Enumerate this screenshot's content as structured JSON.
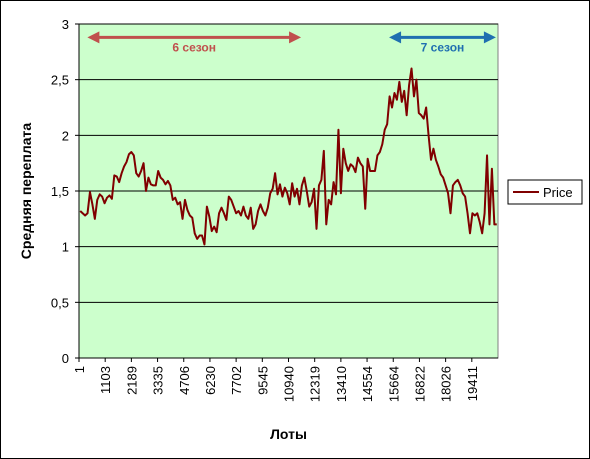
{
  "chart_data": {
    "type": "line",
    "ylabel": "Средняя переплата",
    "xlabel": "Лоты",
    "ylim": [
      0,
      3
    ],
    "y_ticks": [
      "0",
      "0,5",
      "1",
      "1,5",
      "2",
      "2,5",
      "3"
    ],
    "x_tick_labels": [
      "1",
      "1103",
      "2189",
      "3335",
      "4706",
      "6230",
      "7702",
      "9545",
      "10940",
      "12319",
      "13410",
      "14554",
      "15664",
      "16822",
      "18026",
      "19411"
    ],
    "grid": true,
    "legend_position": "right",
    "plot_background": "#ccffcc",
    "series": [
      {
        "name": "Price",
        "color": "#800000",
        "values": [
          1.32,
          1.3,
          1.28,
          1.3,
          1.49,
          1.38,
          1.25,
          1.42,
          1.47,
          1.45,
          1.39,
          1.44,
          1.46,
          1.43,
          1.64,
          1.63,
          1.58,
          1.66,
          1.72,
          1.76,
          1.83,
          1.85,
          1.82,
          1.66,
          1.63,
          1.68,
          1.75,
          1.5,
          1.62,
          1.56,
          1.55,
          1.55,
          1.68,
          1.62,
          1.6,
          1.56,
          1.59,
          1.55,
          1.42,
          1.44,
          1.38,
          1.4,
          1.25,
          1.42,
          1.33,
          1.28,
          1.26,
          1.12,
          1.07,
          1.1,
          1.1,
          1.02,
          1.36,
          1.27,
          1.14,
          1.18,
          1.13,
          1.3,
          1.35,
          1.3,
          1.24,
          1.45,
          1.42,
          1.36,
          1.3,
          1.32,
          1.28,
          1.36,
          1.28,
          1.25,
          1.35,
          1.16,
          1.2,
          1.32,
          1.38,
          1.32,
          1.28,
          1.35,
          1.48,
          1.52,
          1.66,
          1.47,
          1.56,
          1.45,
          1.53,
          1.48,
          1.38,
          1.57,
          1.45,
          1.52,
          1.38,
          1.55,
          1.62,
          1.5,
          1.36,
          1.4,
          1.52,
          1.16,
          1.55,
          1.6,
          1.86,
          1.2,
          1.42,
          1.38,
          1.58,
          1.47,
          2.05,
          1.48,
          1.88,
          1.75,
          1.68,
          1.74,
          1.72,
          1.67,
          1.8,
          1.75,
          1.72,
          1.34,
          1.79,
          1.68,
          1.68,
          1.68,
          1.82,
          1.85,
          1.92,
          2.05,
          2.1,
          2.35,
          2.25,
          2.38,
          2.32,
          2.48,
          2.3,
          2.4,
          2.18,
          2.45,
          2.6,
          2.35,
          2.5,
          2.2,
          2.18,
          2.15,
          2.25,
          2.0,
          1.78,
          1.88,
          1.78,
          1.72,
          1.65,
          1.62,
          1.55,
          1.48,
          1.3,
          1.55,
          1.58,
          1.6,
          1.55,
          1.48,
          1.45,
          1.3,
          1.12,
          1.3,
          1.28,
          1.3,
          1.22,
          1.12,
          1.3,
          1.82,
          1.2,
          1.7,
          1.2,
          1.2
        ]
      }
    ],
    "annotations": [
      {
        "label": "6 сезон",
        "color": "#c0504d",
        "x_start": 0.02,
        "x_end": 0.53,
        "y": 2.88,
        "label_y": 2.8
      },
      {
        "label": "7 сезон",
        "color": "#1f6fb0",
        "x_start": 0.74,
        "x_end": 0.995,
        "y": 2.88,
        "label_y": 2.8
      }
    ]
  }
}
